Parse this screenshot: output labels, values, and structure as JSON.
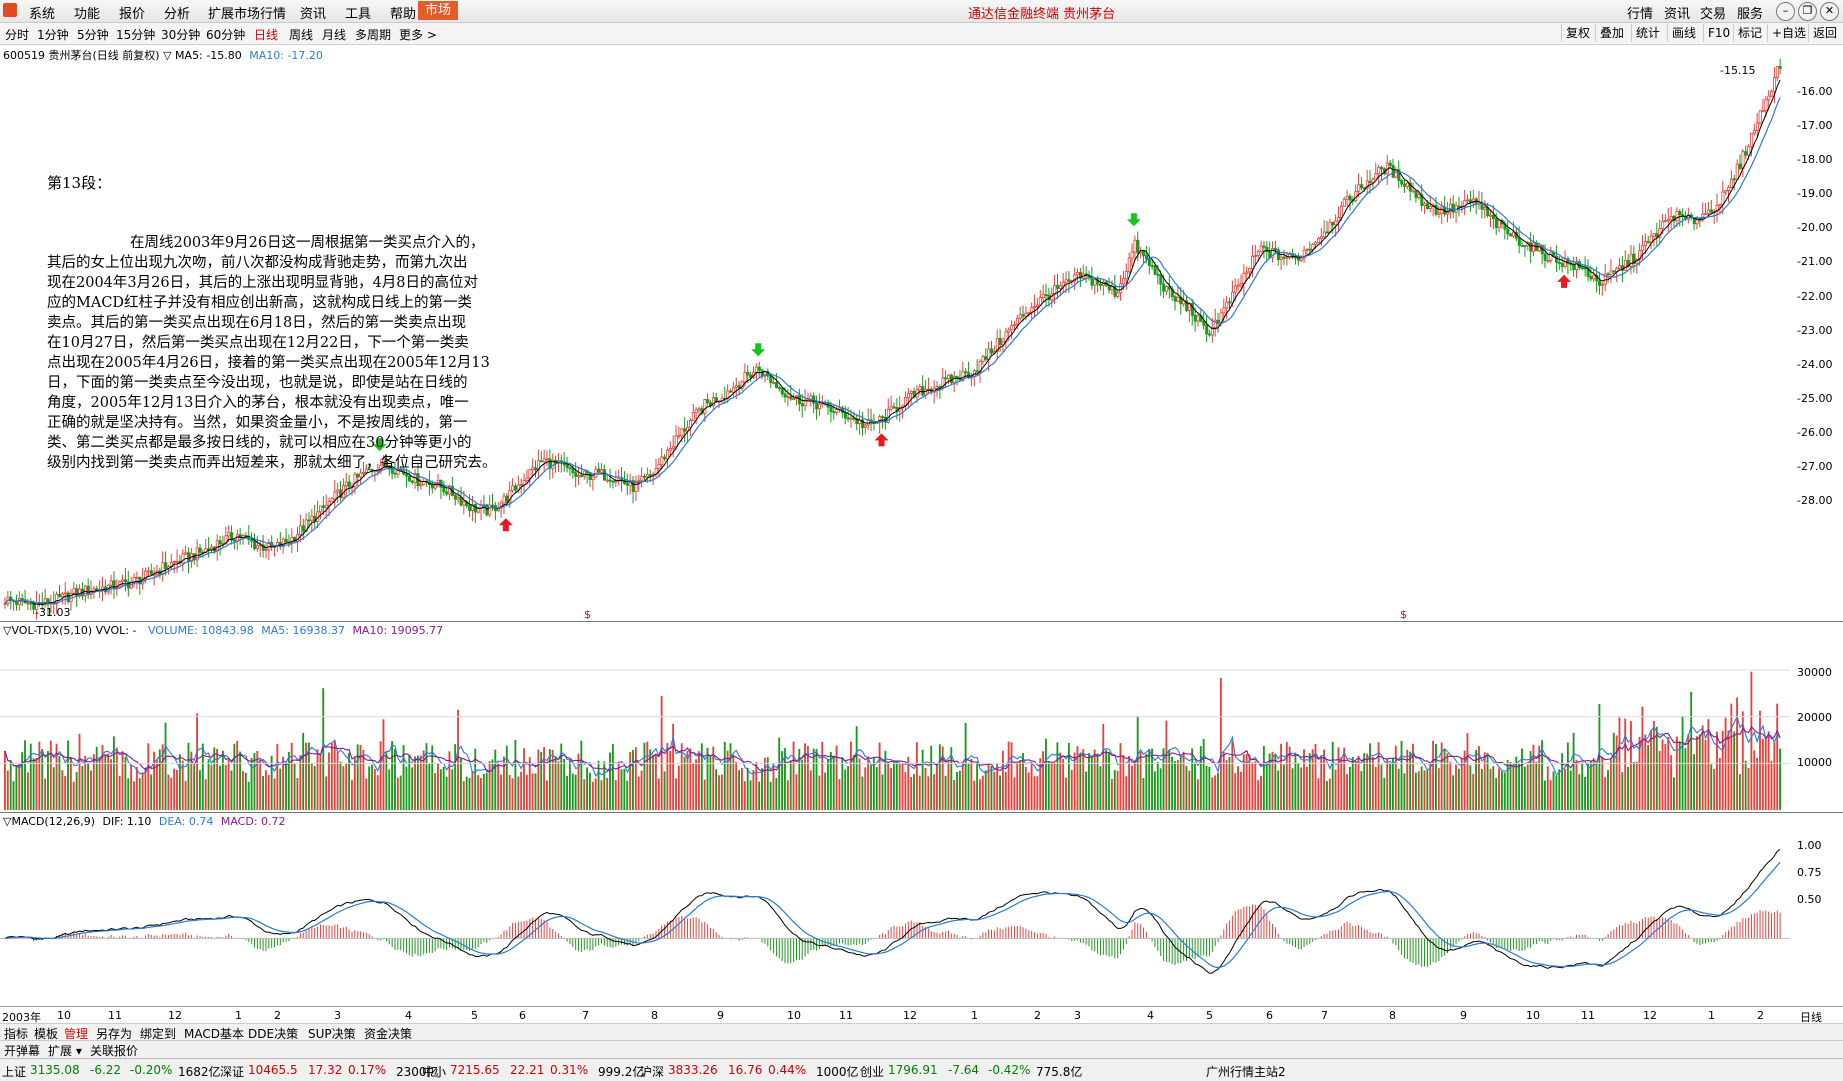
{
  "menubar": {
    "items": [
      "系统",
      "功能",
      "报价",
      "分析",
      "扩展市场行情",
      "资讯",
      "工具",
      "帮助"
    ],
    "market_tab": "市场",
    "title": "通达信金融终端 贵州茅台",
    "right_items": [
      "行情",
      "资讯",
      "交易",
      "服务"
    ]
  },
  "toolbar": {
    "periods": [
      "分时",
      "1分钟",
      "5分钟",
      "15分钟",
      "30分钟",
      "60分钟",
      "日线",
      "周线",
      "月线",
      "多周期",
      "更多 >"
    ],
    "active_period": "日线",
    "right_buttons": [
      "复权",
      "叠加",
      "统计",
      "画线",
      "F10",
      "标记",
      "+自选",
      "返回"
    ]
  },
  "price_panel": {
    "header_name": "600519 贵州茅台(日线 前复权)",
    "ma5": "MA5: -15.80",
    "ma10": "MA10: -17.20",
    "high_label": "-15.15",
    "low_label": "-31.03",
    "axis": [
      "-16.00",
      "-17.00",
      "-18.00",
      "-19.00",
      "-20.00",
      "-21.00",
      "-22.00",
      "-23.00",
      "-24.00",
      "-25.00",
      "-26.00",
      "-27.00",
      "-28.00"
    ]
  },
  "note": {
    "title": "第13段：",
    "body": "                  在周线2003年9月26日这一周根据第一类买点介入的，\n其后的女上位出现九次吻，前八次都没构成背驰走势，而第九次出\n现在2004年3月26日，其后的上涨出现明显背驰，4月8日的高位对\n应的MACD红柱子并没有相应创出新高，这就构成日线上的第一类\n卖点。其后的第一类买点出现在6月18日，然后的第一类卖点出现\n在10月27日，然后第一类买点出现在12月22日，下一个第一类卖\n点出现在2005年4月26日，接着的第一类买点出现在2005年12月13\n日，下面的第一类卖点至今没出现，也就是说，即使是站在日线的\n角度，2005年12月13日介入的茅台，根本就没有出现卖点，唯一\n正确的就是坚决持有。当然，如果资金量小，不是按周线的，第一\n类、第二类买点都是最多按日线的，就可以相应在30分钟等更小的\n级别内找到第一类卖点而弄出短差来，那就太细了，各位自己研究去。"
  },
  "volume_panel": {
    "header": "▽VOL-TDX(5,10) VVOL: -",
    "volume": "VOLUME: 10843.98",
    "ma5": "MA5: 16938.37",
    "ma10": "MA10: 19095.77",
    "axis": [
      "30000",
      "20000",
      "10000"
    ]
  },
  "macd_panel": {
    "header": "▽MACD(12,26,9)",
    "dif": "DIF: 1.10",
    "dea": "DEA: 0.74",
    "macd": "MACD: 0.72",
    "axis": [
      "1.00",
      "0.75",
      "0.50"
    ]
  },
  "time_axis": [
    "2003年",
    "10",
    "11",
    "12",
    "1",
    "2",
    "3",
    "4",
    "5",
    "6",
    "7",
    "8",
    "9",
    "10",
    "11",
    "12",
    "1",
    "2",
    "3",
    "4",
    "5",
    "6",
    "7",
    "8",
    "9",
    "10",
    "11",
    "12",
    "1",
    "2"
  ],
  "time_axis_right": "日线",
  "tabs1": [
    "指标",
    "模板",
    "管理",
    "另存为",
    "绑定到",
    "MACD基本",
    "DDE决策",
    "SUP决策",
    "资金决策"
  ],
  "tabs1_active": "管理",
  "tabs2": [
    "开弹幕",
    "扩展 ▾",
    "关联报价"
  ],
  "ticker": [
    {
      "name": "上证",
      "value": "3135.08",
      "chg": "-6.22",
      "pct": "-0.20%",
      "amt": "1682亿",
      "dir": "dn"
    },
    {
      "name": "深证",
      "value": "10465.5",
      "chg": "17.32",
      "pct": "0.17%",
      "amt": "2300亿",
      "dir": "up"
    },
    {
      "name": "中小",
      "value": "7215.65",
      "chg": "22.21",
      "pct": "0.31%",
      "amt": "999.2亿",
      "dir": "up"
    },
    {
      "name": "沪深",
      "value": "3833.26",
      "chg": "16.76",
      "pct": "0.44%",
      "amt": "1000亿",
      "dir": "up"
    },
    {
      "name": "创业",
      "value": "1796.91",
      "chg": "-7.64",
      "pct": "-0.42%",
      "amt": "775.8亿",
      "dir": "dn"
    }
  ],
  "ticker_station": "广州行情主站2",
  "colors": {
    "up": "#e8413c",
    "down": "#1a9a1a",
    "ma5": "#000000",
    "ma10": "#2a7bd6",
    "vol_ma10": "#8a1a8a",
    "menu_accent": "#e45c2a"
  },
  "chart_data": {
    "type": "candlestick",
    "x_label_start": "2003年",
    "price_path": [
      -30.9,
      -31.0,
      -31.03,
      -30.9,
      -30.7,
      -30.6,
      -30.5,
      -30.4,
      -30.2,
      -29.9,
      -29.7,
      -29.5,
      -29.2,
      -29.0,
      -29.3,
      -29.4,
      -29.1,
      -28.6,
      -28.1,
      -27.6,
      -27.2,
      -26.9,
      -27.1,
      -27.4,
      -27.5,
      -27.8,
      -28.2,
      -28.3,
      -27.9,
      -27.3,
      -26.8,
      -27.0,
      -27.3,
      -27.2,
      -27.3,
      -27.6,
      -27.3,
      -26.5,
      -25.8,
      -25.2,
      -24.9,
      -24.5,
      -24.1,
      -24.6,
      -25.0,
      -25.1,
      -25.3,
      -25.5,
      -25.8,
      -25.6,
      -25.1,
      -24.8,
      -24.6,
      -24.4,
      -24.2,
      -23.6,
      -23.0,
      -22.4,
      -22.0,
      -21.7,
      -21.4,
      -21.6,
      -21.9,
      -20.5,
      -21.2,
      -22.0,
      -22.3,
      -23.1,
      -22.4,
      -21.5,
      -20.6,
      -20.8,
      -20.9,
      -20.4,
      -19.8,
      -19.1,
      -18.6,
      -18.2,
      -18.6,
      -19.2,
      -19.5,
      -19.4,
      -19.2,
      -19.8,
      -20.2,
      -20.5,
      -20.8,
      -21.0,
      -21.2,
      -21.6,
      -21.2,
      -20.8,
      -20.2,
      -19.6,
      -19.8,
      -19.5,
      -19.0,
      -17.8,
      -16.5,
      -15.15
    ],
    "buy_points_idx": [
      2,
      28,
      49,
      87
    ],
    "sell_points_idx": [
      21,
      42,
      63
    ]
  }
}
